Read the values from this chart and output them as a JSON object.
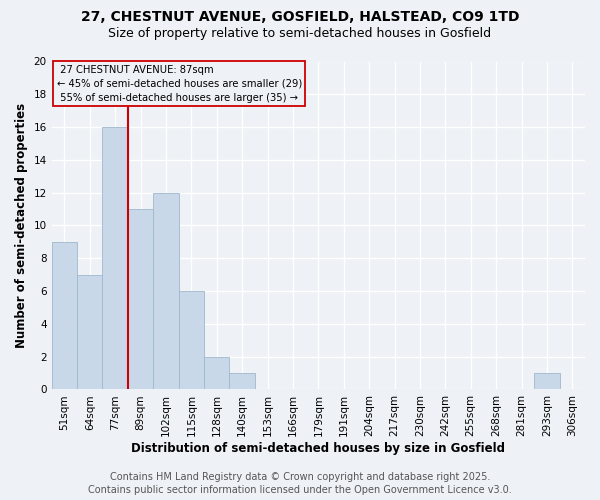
{
  "title1": "27, CHESTNUT AVENUE, GOSFIELD, HALSTEAD, CO9 1TD",
  "title2": "Size of property relative to semi-detached houses in Gosfield",
  "xlabel": "Distribution of semi-detached houses by size in Gosfield",
  "ylabel": "Number of semi-detached properties",
  "footer1": "Contains HM Land Registry data © Crown copyright and database right 2025.",
  "footer2": "Contains public sector information licensed under the Open Government Licence v3.0.",
  "categories": [
    "51sqm",
    "64sqm",
    "77sqm",
    "89sqm",
    "102sqm",
    "115sqm",
    "128sqm",
    "140sqm",
    "153sqm",
    "166sqm",
    "179sqm",
    "191sqm",
    "204sqm",
    "217sqm",
    "230sqm",
    "242sqm",
    "255sqm",
    "268sqm",
    "281sqm",
    "293sqm",
    "306sqm"
  ],
  "values": [
    9,
    7,
    16,
    11,
    12,
    6,
    2,
    1,
    0,
    0,
    0,
    0,
    0,
    0,
    0,
    0,
    0,
    0,
    0,
    1,
    0
  ],
  "bar_color": "#c8d8e8",
  "bar_edge_color": "#a0b8cc",
  "property_label": "27 CHESTNUT AVENUE: 87sqm",
  "pct_smaller": 45,
  "count_smaller": 29,
  "pct_larger": 55,
  "count_larger": 35,
  "vline_color": "#cc0000",
  "vline_x": 2.5,
  "ylim": [
    0,
    20
  ],
  "yticks": [
    0,
    2,
    4,
    6,
    8,
    10,
    12,
    14,
    16,
    18,
    20
  ],
  "bg_color": "#eef2f6",
  "grid_color": "#ffffff",
  "title_fontsize": 10,
  "subtitle_fontsize": 9,
  "axis_label_fontsize": 8.5,
  "tick_fontsize": 7.5,
  "footer_fontsize": 7
}
